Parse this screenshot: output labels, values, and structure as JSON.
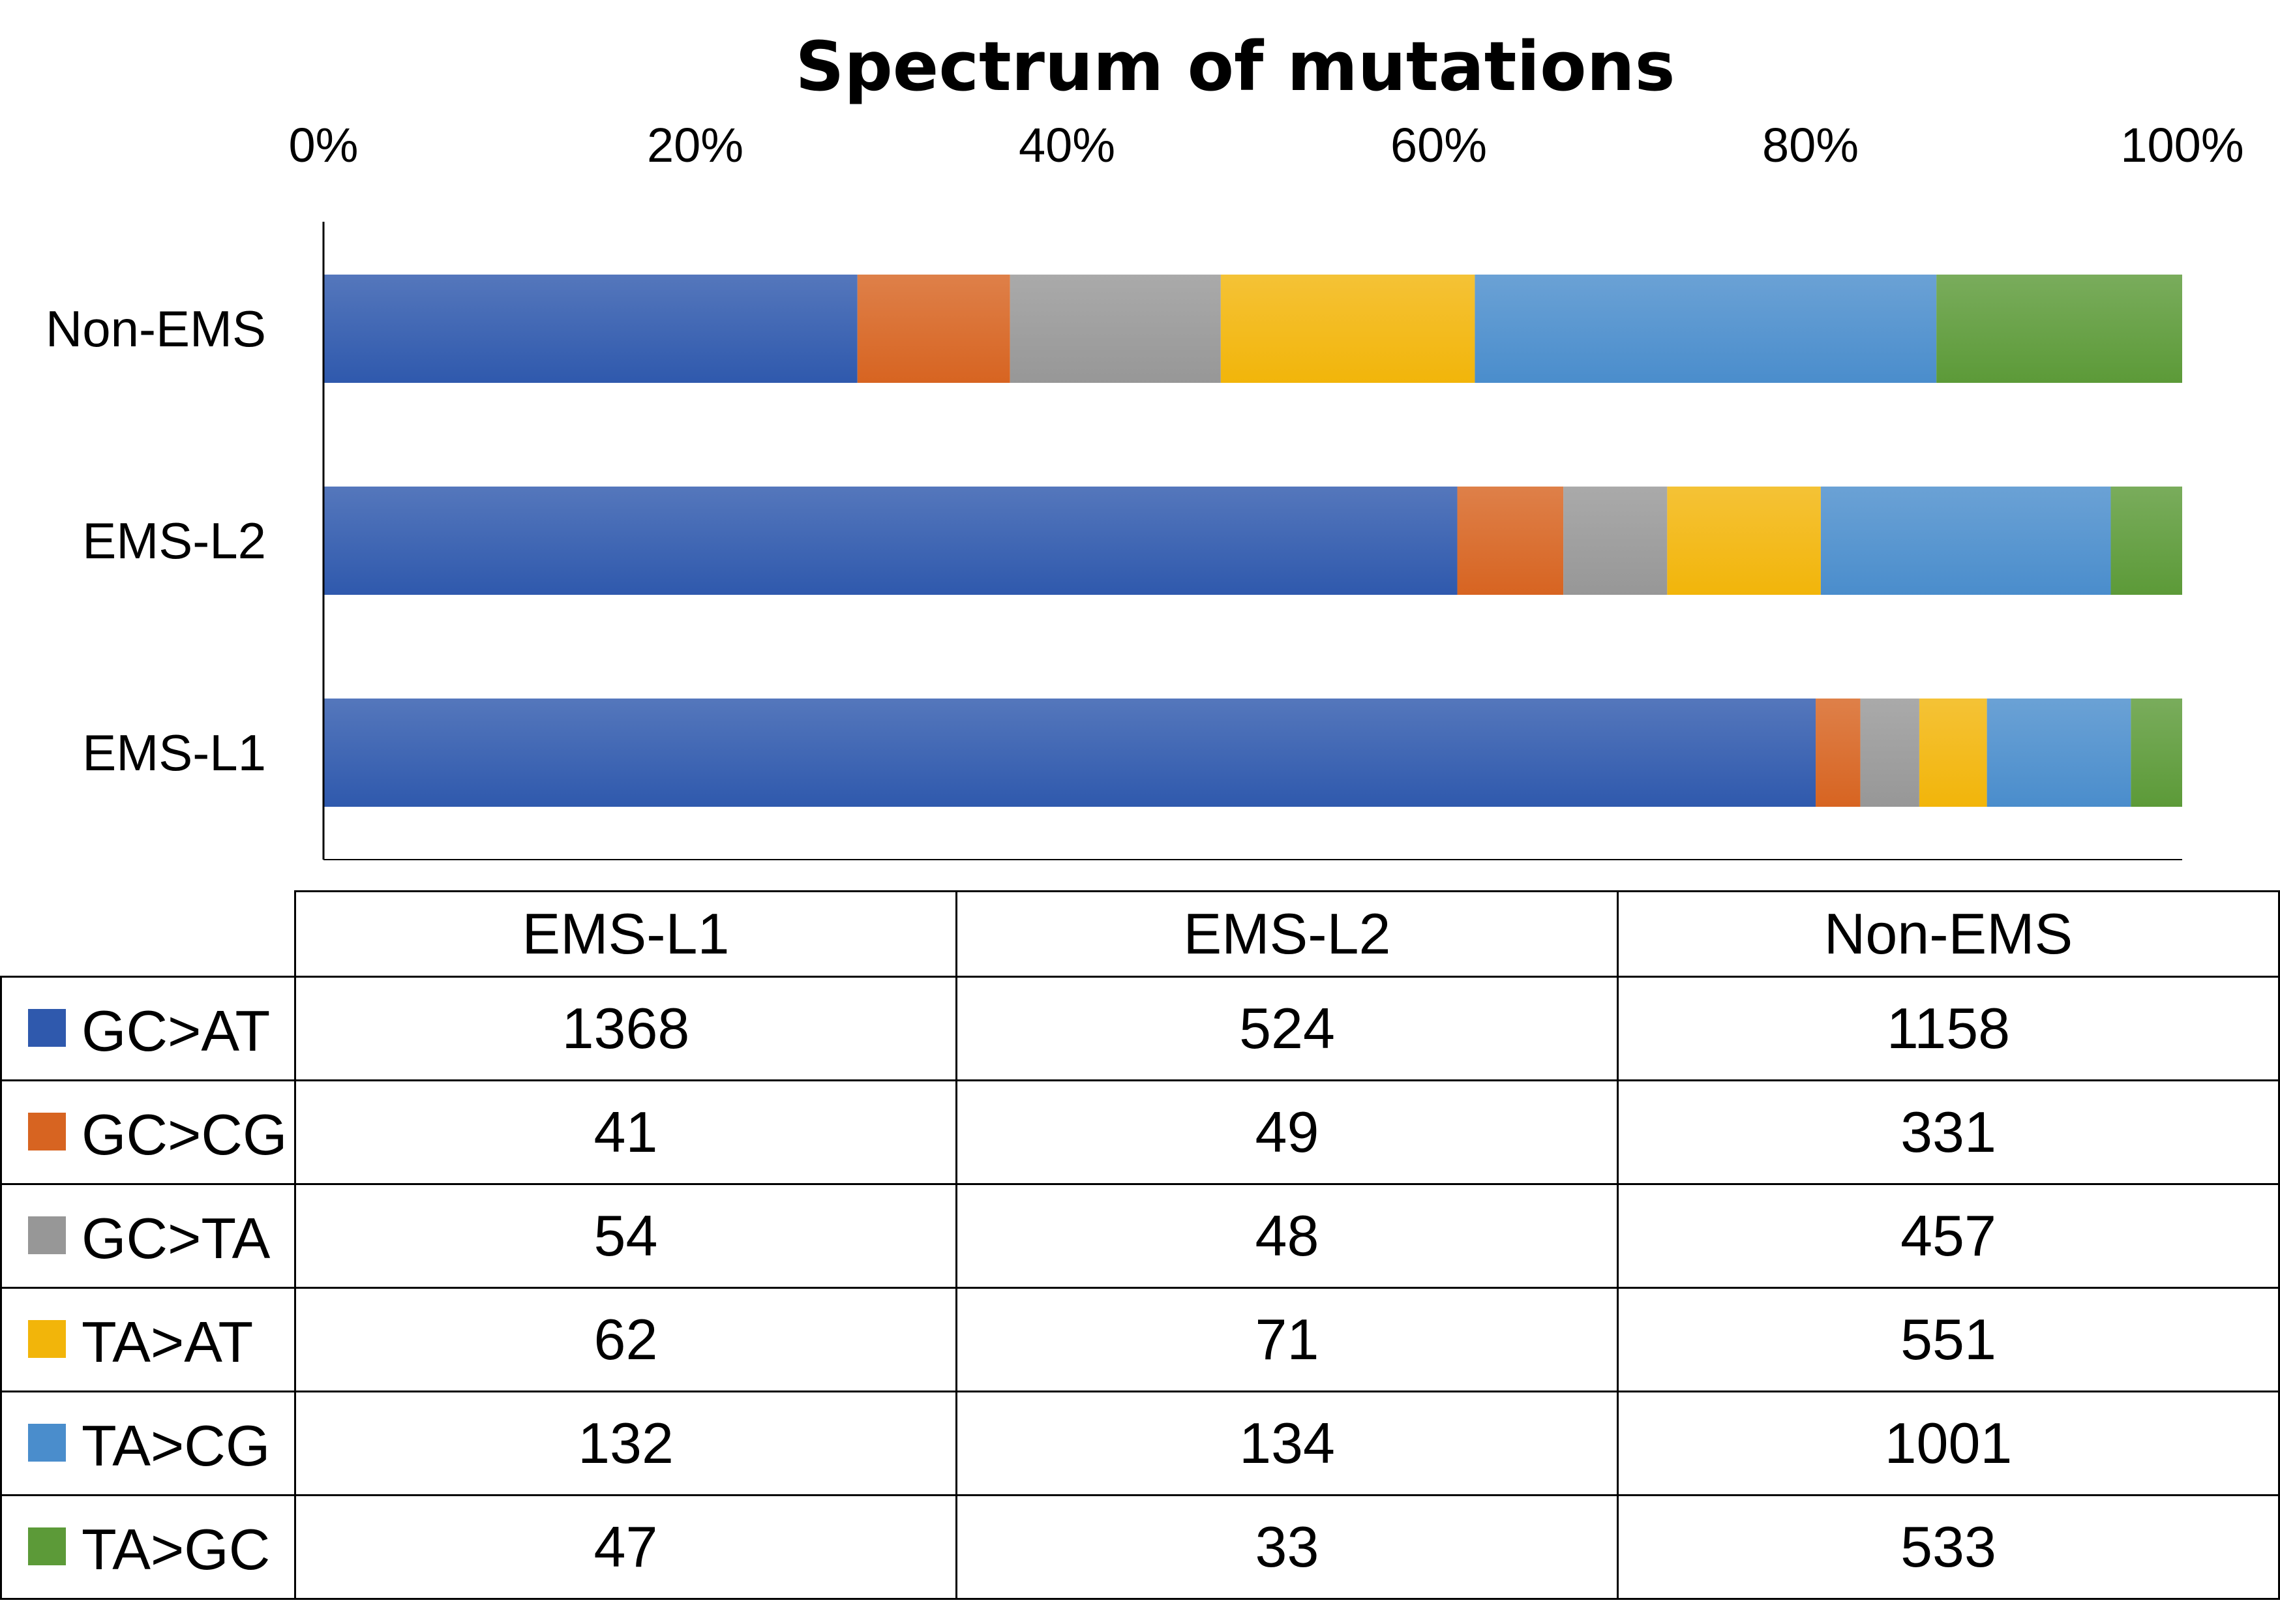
{
  "chart_data": {
    "type": "bar",
    "orientation": "horizontal",
    "stacked": "percent",
    "title": "Spectrum of mutations",
    "xlabel": "",
    "ylabel": "",
    "xlim": [
      0,
      100
    ],
    "x_ticks": [
      "0%",
      "20%",
      "40%",
      "60%",
      "80%",
      "100%"
    ],
    "categories": [
      "EMS-L1",
      "EMS-L2",
      "Non-EMS"
    ],
    "series": [
      {
        "name": "GC>AT",
        "color": "#2f59ad",
        "values": [
          1368,
          524,
          1158
        ]
      },
      {
        "name": "GC>CG",
        "color": "#d76421",
        "values": [
          41,
          49,
          331
        ]
      },
      {
        "name": "GC>TA",
        "color": "#979797",
        "values": [
          54,
          48,
          457
        ]
      },
      {
        "name": "TA>AT",
        "color": "#f2b50a",
        "values": [
          62,
          71,
          551
        ]
      },
      {
        "name": "TA>CG",
        "color": "#4a8dcc",
        "values": [
          132,
          134,
          1001
        ]
      },
      {
        "name": "TA>GC",
        "color": "#5c9a38",
        "values": [
          47,
          33,
          533
        ]
      }
    ],
    "legend": "data-table-below",
    "grid": false
  }
}
